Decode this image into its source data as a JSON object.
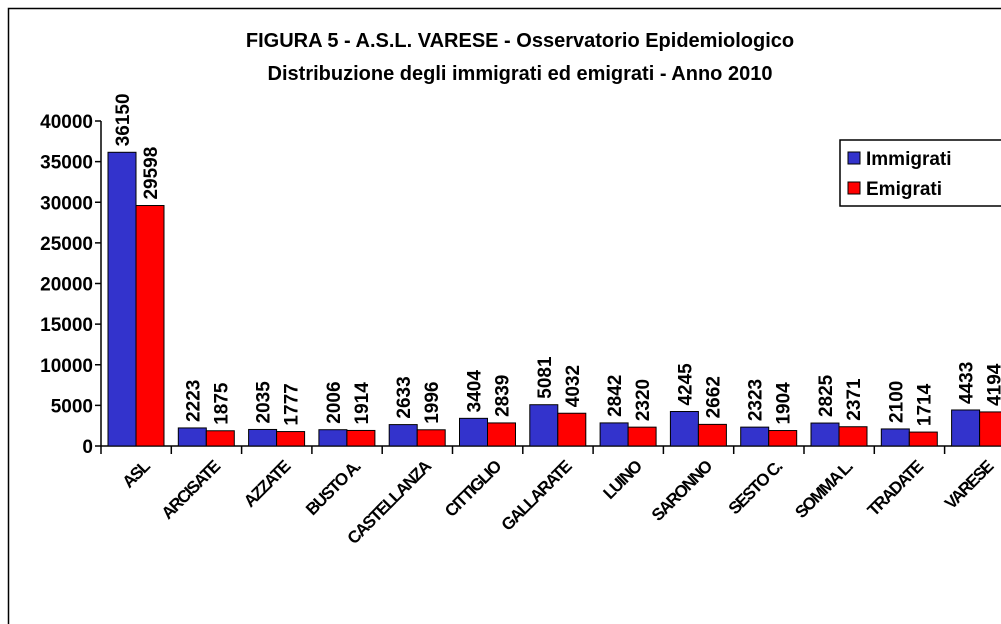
{
  "chart_data": {
    "type": "bar",
    "title": "FIGURA 5 -  A.S.L.  VARESE - Osservatorio Epidemiologico",
    "subtitle": "Distribuzione degli immigrati ed emigrati - Anno 2010",
    "categories": [
      "ASL",
      "ARCISATE",
      "AZZATE",
      "BUSTO A.",
      "CASTELLANZA",
      "CITTIGLIO",
      "GALLARATE",
      "LUINO",
      "SARONNO",
      "SESTO C.",
      "SOMMA L.",
      "TRADATE",
      "VARESE"
    ],
    "series": [
      {
        "name": "Immigrati",
        "color": "#3333cc",
        "values": [
          36150,
          2223,
          2035,
          2006,
          2633,
          3404,
          5081,
          2842,
          4245,
          2323,
          2825,
          2100,
          4433
        ]
      },
      {
        "name": "Emigrati",
        "color": "#ff0000",
        "values": [
          29598,
          1875,
          1777,
          1914,
          1996,
          2839,
          4032,
          2320,
          2662,
          1904,
          2371,
          1714,
          4194
        ]
      }
    ],
    "ylim": [
      0,
      40000
    ],
    "yticks": [
      0,
      5000,
      10000,
      15000,
      20000,
      25000,
      30000,
      35000,
      40000
    ],
    "grid": false,
    "legend": "right"
  }
}
